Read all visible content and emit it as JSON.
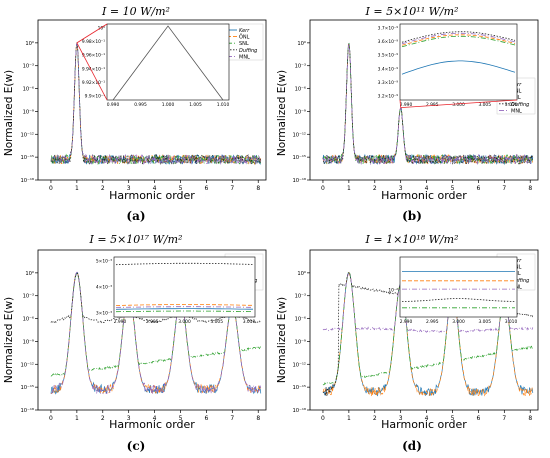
{
  "colors": {
    "Kerr": "#1f77b4",
    "ONL": "#ff7f0e",
    "SNL": "#2ca02c",
    "Duffing": "#222222",
    "MNL": "#9467bd",
    "zoom_lines": "#e8232b"
  },
  "legend_labels": [
    "Kerr",
    "ÖNL",
    "SNL",
    "Duffing",
    "MNL"
  ],
  "chart_data": [
    {
      "type": "line",
      "panel_label": "(a)",
      "title": "I = 10 W/m²",
      "xlabel": "Harmonic order",
      "ylabel": "Normalized E(w)",
      "xlim": [
        -0.5,
        8.3
      ],
      "ylim_log10": [
        -18,
        3
      ],
      "y_scale": "log",
      "x_ticks": [
        "0",
        "1",
        "2",
        "3",
        "4",
        "5",
        "6",
        "7",
        "8"
      ],
      "y_ticks": [
        "10⁻¹⁸",
        "10⁻¹⁵",
        "10⁻¹²",
        "10⁻⁹",
        "10⁻⁶",
        "10⁻³",
        "10⁰"
      ],
      "legend_position": "top-right",
      "peaks_log10": [
        [
          1,
          0
        ]
      ],
      "noise_floor_log10": -15.3,
      "series": [
        {
          "name": "Kerr"
        },
        {
          "name": "ÖNL"
        },
        {
          "name": "SNL"
        },
        {
          "name": "Duffing"
        },
        {
          "name": "MNL"
        }
      ],
      "inset": {
        "x_ticks": [
          "0.990",
          "0.995",
          "1.000",
          "1.005",
          "1.010"
        ],
        "y_ticks": [
          "9.9×10⁻¹",
          "9.92×10⁻¹",
          "9.94×10⁻¹",
          "9.96×10⁻¹",
          "9.98×10⁻¹",
          "10⁰"
        ],
        "peak_x": 1.0,
        "peak_y": 1.0
      }
    },
    {
      "type": "line",
      "panel_label": "(b)",
      "title": "I = 5×10¹¹ W/m²",
      "xlabel": "Harmonic order",
      "ylabel": "Normalized E(w)",
      "xlim": [
        -0.5,
        8.3
      ],
      "ylim_log10": [
        -18,
        3
      ],
      "y_scale": "log",
      "x_ticks": [
        "0",
        "1",
        "2",
        "3",
        "4",
        "5",
        "6",
        "7",
        "8"
      ],
      "y_ticks": [
        "10⁻¹⁸",
        "10⁻¹⁵",
        "10⁻¹²",
        "10⁻⁹",
        "10⁻⁶",
        "10⁻³",
        "10⁰"
      ],
      "legend_position": "right",
      "peaks_log10": [
        [
          1,
          0
        ],
        [
          3,
          -8.5
        ]
      ],
      "noise_floor_log10": -15.3,
      "series": [
        {
          "name": "Kerr"
        },
        {
          "name": "ÖNL"
        },
        {
          "name": "SNL"
        },
        {
          "name": "Duffing"
        },
        {
          "name": "MNL"
        }
      ],
      "inset": {
        "x_ticks": [
          "2.990",
          "2.995",
          "3.000",
          "3.005",
          "3.010"
        ],
        "y_ticks": [
          "3.2×10⁻⁹",
          "3.3×10⁻⁹",
          "3.4×10⁻⁹",
          "3.5×10⁻⁹",
          "3.6×10⁻⁹",
          "3.7×10⁻⁹"
        ],
        "ylim": [
          3.2,
          3.7
        ],
        "curves": [
          {
            "name": "Kerr",
            "start": 3.37,
            "peak": 3.46,
            "end": 3.41
          },
          {
            "name": "ÖNL",
            "start": 3.56,
            "peak": 3.63,
            "end": 3.6
          },
          {
            "name": "SNL",
            "start": 3.55,
            "peak": 3.62,
            "end": 3.59
          },
          {
            "name": "Duffing",
            "start": 3.58,
            "peak": 3.65,
            "end": 3.62
          },
          {
            "name": "MNL",
            "start": 3.57,
            "peak": 3.64,
            "end": 3.61
          }
        ]
      }
    },
    {
      "type": "line",
      "panel_label": "(c)",
      "title": "I = 5×10¹⁷ W/m²",
      "xlabel": "Harmonic order",
      "ylabel": "Normalized E(w)",
      "xlim": [
        -0.5,
        8.3
      ],
      "ylim_log10": [
        -18,
        3
      ],
      "y_scale": "log",
      "x_ticks": [
        "0",
        "1",
        "2",
        "3",
        "4",
        "5",
        "6",
        "7",
        "8"
      ],
      "y_ticks": [
        "10⁻¹⁸",
        "10⁻¹⁵",
        "10⁻¹²",
        "10⁻⁹",
        "10⁻⁶",
        "10⁻³",
        "10⁰"
      ],
      "legend_position": "top-right",
      "peaks_log10": [
        [
          1,
          0
        ],
        [
          3,
          -2.3
        ],
        [
          5,
          -3.5
        ],
        [
          7,
          -4.3
        ]
      ],
      "noise_floor_log10": -15.3,
      "series": [
        {
          "name": "Kerr"
        },
        {
          "name": "ÖNL"
        },
        {
          "name": "SNL"
        },
        {
          "name": "Duffing"
        },
        {
          "name": "MNL"
        }
      ],
      "inset": {
        "x_ticks": [
          "2.990",
          "2.995",
          "3.000",
          "3.005",
          "3.010"
        ],
        "y_ticks": [
          "3×10⁻³",
          "4×10⁻³",
          "5×10⁻³"
        ],
        "ylim": [
          3.0,
          5.5
        ],
        "curves": [
          {
            "name": "Kerr",
            "start": 3.32,
            "peak": 3.35,
            "end": 3.33
          },
          {
            "name": "ÖNL",
            "start": 3.48,
            "peak": 3.52,
            "end": 3.5
          },
          {
            "name": "SNL",
            "start": 3.22,
            "peak": 3.25,
            "end": 3.23
          },
          {
            "name": "Duffing",
            "start": 5.18,
            "peak": 5.24,
            "end": 5.21
          },
          {
            "name": "MNL",
            "start": 3.4,
            "peak": 3.43,
            "end": 3.41
          }
        ]
      }
    },
    {
      "type": "line",
      "panel_label": "(d)",
      "title": "I = 1×10¹⁸ W/m²",
      "xlabel": "Harmonic order",
      "ylabel": "Normalized E(w)",
      "xlim": [
        -0.5,
        8.3
      ],
      "ylim_log10": [
        -18,
        3
      ],
      "y_scale": "log",
      "x_ticks": [
        "0",
        "1",
        "2",
        "3",
        "4",
        "5",
        "6",
        "7",
        "8"
      ],
      "y_ticks": [
        "10⁻¹⁸",
        "10⁻¹⁵",
        "10⁻¹²",
        "10⁻⁹",
        "10⁻⁶",
        "10⁻³",
        "10⁰"
      ],
      "legend_position": "top-right",
      "peaks_log10": [
        [
          1,
          0
        ],
        [
          3,
          -1.5
        ],
        [
          5,
          -2.6
        ],
        [
          7,
          -3.4
        ]
      ],
      "noise_floor_log10": -15.6,
      "series": [
        {
          "name": "Kerr"
        },
        {
          "name": "ÖNL"
        },
        {
          "name": "SNL"
        },
        {
          "name": "Duffing"
        },
        {
          "name": "MNL"
        }
      ],
      "inset": {
        "x_ticks": [
          "2.990",
          "2.995",
          "3.000",
          "3.005",
          "3.010"
        ],
        "y_ticks": [
          "10⁻²"
        ],
        "curves": [
          {
            "name": "Kerr",
            "level": 0.8
          },
          {
            "name": "ÖNL",
            "level": 0.62
          },
          {
            "name": "SNL",
            "level": 0.1
          },
          {
            "name": "Duffing",
            "level": 0.22
          },
          {
            "name": "MNL",
            "level": 0.46
          }
        ]
      }
    }
  ]
}
